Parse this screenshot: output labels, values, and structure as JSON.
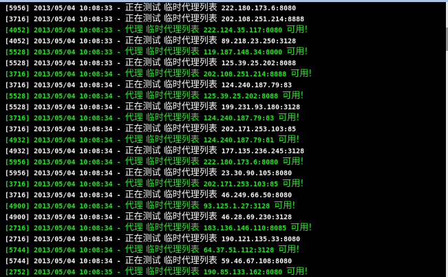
{
  "colors": {
    "ok": "#22e822",
    "normal": "#f4f4f4",
    "background": "#000000"
  },
  "lines": [
    {
      "pid": "[5956]",
      "time": "2013/05/04 10:08:33",
      "msg": "正在测试 临时代理列表",
      "addr": "222.180.173.6:8080",
      "status": "",
      "ok": false
    },
    {
      "pid": "[3716]",
      "time": "2013/05/04 10:08:33",
      "msg": "正在测试 临时代理列表",
      "addr": "202.108.251.214:8888",
      "status": "",
      "ok": false
    },
    {
      "pid": "[4052]",
      "time": "2013/05/04 10:08:33",
      "msg": "代理 临时代理列表",
      "addr": "222.124.35.117:8080",
      "status": "可用!",
      "ok": true
    },
    {
      "pid": "[4052]",
      "time": "2013/05/04 10:08:33",
      "msg": "正在测试 临时代理列表",
      "addr": "89.218.23.250:3128",
      "status": "",
      "ok": false
    },
    {
      "pid": "[5528]",
      "time": "2013/05/04 10:08:33",
      "msg": "代理 临时代理列表",
      "addr": "119.187.148.34:8000",
      "status": "可用!",
      "ok": true
    },
    {
      "pid": "[5528]",
      "time": "2013/05/04 10:08:33",
      "msg": "正在测试 临时代理列表",
      "addr": "125.39.25.202:8088",
      "status": "",
      "ok": false
    },
    {
      "pid": "[3716]",
      "time": "2013/05/04 10:08:34",
      "msg": "代理 临时代理列表",
      "addr": "202.108.251.214:8888",
      "status": "可用!",
      "ok": true
    },
    {
      "pid": "[3716]",
      "time": "2013/05/04 10:08:34",
      "msg": "正在测试 临时代理列表",
      "addr": "124.240.187.79:83",
      "status": "",
      "ok": false
    },
    {
      "pid": "[5528]",
      "time": "2013/05/04 10:08:34",
      "msg": "代理 临时代理列表",
      "addr": "125.39.25.202:8088",
      "status": "可用!",
      "ok": true
    },
    {
      "pid": "[5528]",
      "time": "2013/05/04 10:08:34",
      "msg": "正在测试 临时代理列表",
      "addr": "199.231.93.180:3128",
      "status": "",
      "ok": false
    },
    {
      "pid": "[3716]",
      "time": "2013/05/04 10:08:34",
      "msg": "代理 临时代理列表",
      "addr": "124.240.187.79:83",
      "status": "可用!",
      "ok": true
    },
    {
      "pid": "[3716]",
      "time": "2013/05/04 10:08:34",
      "msg": "正在测试 临时代理列表",
      "addr": "202.171.253.103:85",
      "status": "",
      "ok": false
    },
    {
      "pid": "[4932]",
      "time": "2013/05/04 10:08:34",
      "msg": "代理 临时代理列表",
      "addr": "124.240.187.79:81",
      "status": "可用!",
      "ok": true
    },
    {
      "pid": "[4932]",
      "time": "2013/05/04 10:08:34",
      "msg": "正在测试 临时代理列表",
      "addr": "177.135.236.245:3128",
      "status": "",
      "ok": false
    },
    {
      "pid": "[5956]",
      "time": "2013/05/04 10:08:34",
      "msg": "代理 临时代理列表",
      "addr": "222.180.173.6:8080",
      "status": "可用!",
      "ok": true
    },
    {
      "pid": "[5956]",
      "time": "2013/05/04 10:08:34",
      "msg": "正在测试 临时代理列表",
      "addr": "23.30.90.105:8080",
      "status": "",
      "ok": false
    },
    {
      "pid": "[3716]",
      "time": "2013/05/04 10:08:34",
      "msg": "代理 临时代理列表",
      "addr": "202.171.253.103:85",
      "status": "可用!",
      "ok": true
    },
    {
      "pid": "[3716]",
      "time": "2013/05/04 10:08:34",
      "msg": "正在测试 临时代理列表",
      "addr": "46.249.66.50:8080",
      "status": "",
      "ok": false
    },
    {
      "pid": "[4900]",
      "time": "2013/05/04 10:08:34",
      "msg": "代理 临时代理列表",
      "addr": "93.125.1.27:3128",
      "status": "可用!",
      "ok": true
    },
    {
      "pid": "[4900]",
      "time": "2013/05/04 10:08:34",
      "msg": "正在测试 临时代理列表",
      "addr": "46.28.69.230:3128",
      "status": "",
      "ok": false
    },
    {
      "pid": "[2716]",
      "time": "2013/05/04 10:08:34",
      "msg": "代理 临时代理列表",
      "addr": "183.136.146.110:8085",
      "status": "可用!",
      "ok": true
    },
    {
      "pid": "[2716]",
      "time": "2013/05/04 10:08:34",
      "msg": "正在测试 临时代理列表",
      "addr": "190.121.135.33:8080",
      "status": "",
      "ok": false
    },
    {
      "pid": "[5744]",
      "time": "2013/05/04 10:08:34",
      "msg": "代理 临时代理列表",
      "addr": "64.37.51.112:3128",
      "status": "可用!",
      "ok": true
    },
    {
      "pid": "[5744]",
      "time": "2013/05/04 10:08:34",
      "msg": "正在测试 临时代理列表",
      "addr": "59.46.67.108:8080",
      "status": "",
      "ok": false
    },
    {
      "pid": "[2752]",
      "time": "2013/05/04 10:08:35",
      "msg": "代理 临时代理列表",
      "addr": "190.85.133.162:8080",
      "status": "可用!",
      "ok": true
    }
  ]
}
